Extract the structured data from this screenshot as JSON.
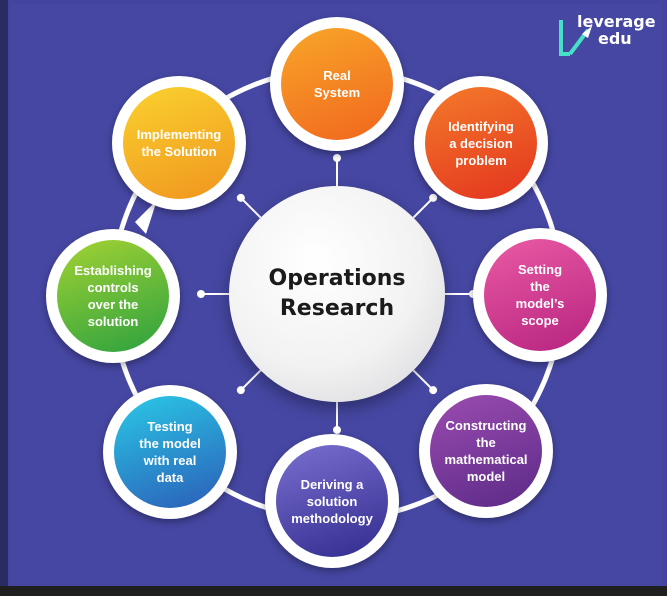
{
  "center": {
    "title": "Operations\nResearch"
  },
  "logo": {
    "line1": "leverage",
    "line2": "edu"
  },
  "steps": [
    {
      "label": "Real\nSystem",
      "color_start": "#f8a629",
      "color_end": "#f1661e"
    },
    {
      "label": "Identifying\na decision\nproblem",
      "color_start": "#f47a2a",
      "color_end": "#e3341f"
    },
    {
      "label": "Setting\nthe\nmodel’s\nscope",
      "color_start": "#ea5aa3",
      "color_end": "#b62480"
    },
    {
      "label": "Constructing\nthe\nmathematical\nmodel",
      "color_start": "#9b4cb0",
      "color_end": "#5b2a87"
    },
    {
      "label": "Deriving a\nsolution\nmethodology",
      "color_start": "#7a6fd0",
      "color_end": "#312c8e"
    },
    {
      "label": "Testing\nthe model\nwith real\ndata",
      "color_start": "#2ac9e6",
      "color_end": "#2b5db8"
    },
    {
      "label": "Establishing\ncontrols\nover the\nsolution",
      "color_start": "#a3d233",
      "color_end": "#2ba13f"
    },
    {
      "label": "Implementing\nthe Solution",
      "color_start": "#fad22e",
      "color_end": "#f0951f"
    }
  ]
}
